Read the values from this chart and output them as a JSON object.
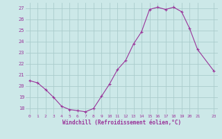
{
  "x": [
    0,
    1,
    2,
    3,
    4,
    5,
    6,
    7,
    8,
    9,
    10,
    11,
    12,
    13,
    14,
    15,
    16,
    17,
    18,
    19,
    20,
    21,
    23
  ],
  "y": [
    20.5,
    20.3,
    19.7,
    19.0,
    18.2,
    17.9,
    17.8,
    17.7,
    18.0,
    19.1,
    20.2,
    21.5,
    22.3,
    23.8,
    24.9,
    26.9,
    27.1,
    26.9,
    27.1,
    26.7,
    25.2,
    23.3,
    21.4
  ],
  "line_color": "#993399",
  "marker": "+",
  "bg_color": "#cce8e8",
  "grid_color": "#aacccc",
  "xlabel": "Windchill (Refroidissement éolien,°C)",
  "tick_color": "#993399",
  "ylim": [
    17.5,
    27.5
  ],
  "xlim": [
    -0.5,
    23.5
  ],
  "yticks": [
    18,
    19,
    20,
    21,
    22,
    23,
    24,
    25,
    26,
    27
  ],
  "xticks": [
    0,
    1,
    2,
    3,
    4,
    5,
    6,
    7,
    8,
    9,
    10,
    11,
    12,
    13,
    14,
    15,
    16,
    17,
    18,
    19,
    20,
    21,
    23
  ]
}
